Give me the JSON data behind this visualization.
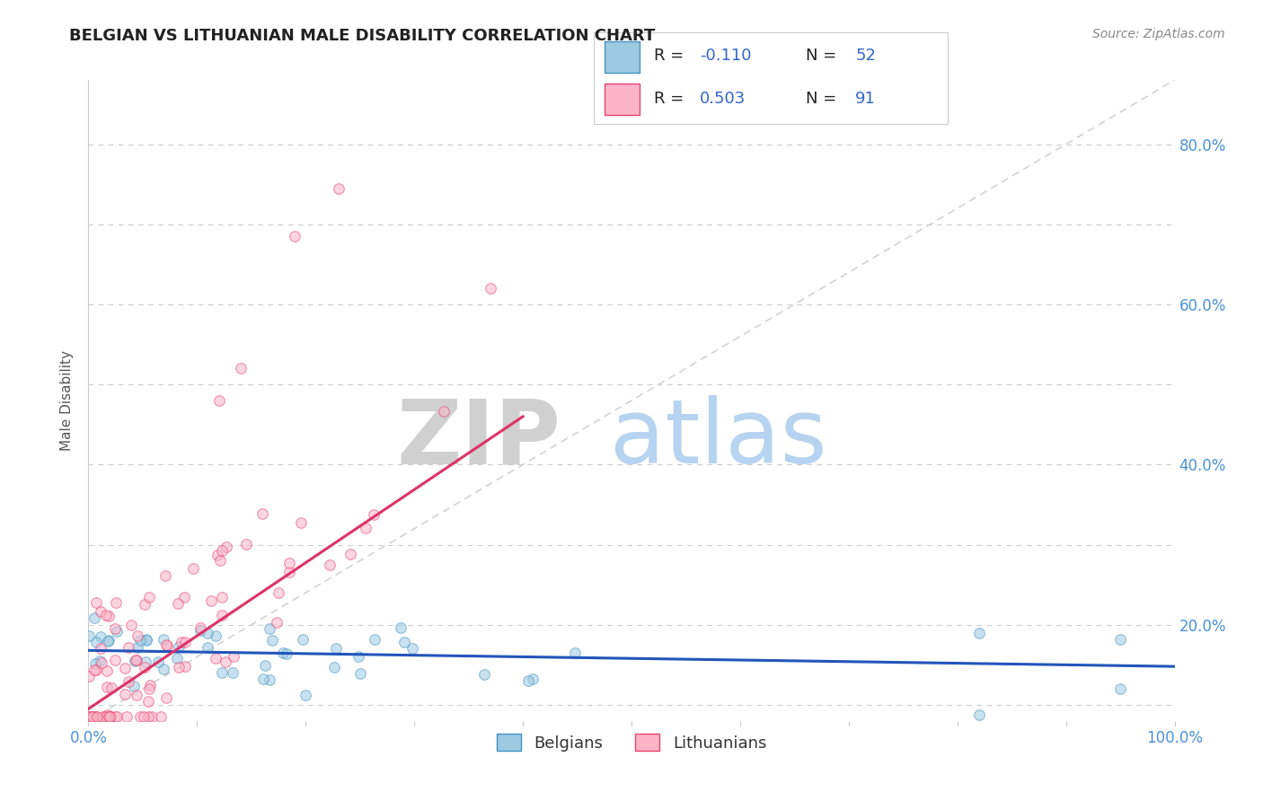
{
  "title": "BELGIAN VS LITHUANIAN MALE DISABILITY CORRELATION CHART",
  "source_text": "Source: ZipAtlas.com",
  "ylabel": "Male Disability",
  "xlim": [
    0.0,
    1.0
  ],
  "ylim": [
    0.08,
    0.88
  ],
  "belgian_color": "#9ecae1",
  "lithuanian_color": "#fbb4c7",
  "belgian_edge": "#4292c6",
  "lithuanian_edge": "#e8436e",
  "trend_blue": "#2255bb",
  "trend_pink": "#dd3366",
  "ref_line_color": "#cccccc",
  "R_belgian": -0.11,
  "N_belgian": 52,
  "R_lithuanian": 0.503,
  "N_lithuanian": 91,
  "watermark_zip": "ZIP",
  "watermark_atlas": "atlas",
  "watermark_zip_color": "#c8c8c8",
  "watermark_atlas_color": "#aaccee",
  "title_color": "#222222",
  "title_fontsize": 13,
  "axis_label_color": "#555555",
  "tick_color": "#4a90d9",
  "legend_stat_color": "#3366cc",
  "background_color": "#ffffff",
  "grid_color": "#cccccc",
  "marker_size": 70,
  "marker_alpha": 0.55,
  "bel_trend_start_x": 0.0,
  "bel_trend_end_x": 1.0,
  "bel_trend_start_y": 0.168,
  "bel_trend_end_y": 0.148,
  "lit_trend_start_x": 0.0,
  "lit_trend_end_x": 0.4,
  "lit_trend_start_y": 0.095,
  "lit_trend_end_y": 0.46
}
